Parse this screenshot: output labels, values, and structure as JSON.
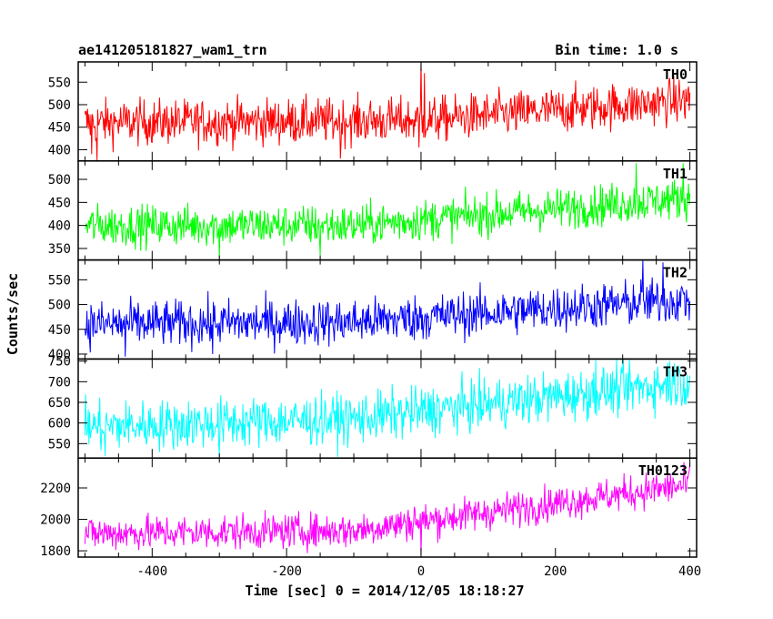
{
  "chart_data": {
    "type": "line",
    "title": "ae141205181827_wam1_trn",
    "bin_time": "Bin time: 1.0 s",
    "xlabel": "Time [sec] 0 = 2014/12/05 18:18:27",
    "ylabel": "Counts/sec",
    "xlim": [
      -510,
      410
    ],
    "x_ticks": [
      -400,
      -200,
      0,
      200,
      400
    ],
    "x_start": -500,
    "x_end": 400,
    "x_step": 1,
    "panels": [
      {
        "name": "TH0",
        "color": "#ff0000",
        "ylim": [
          375,
          595
        ],
        "y_ticks": [
          400,
          450,
          500,
          550
        ],
        "trend": [
          [
            -500,
            460
          ],
          [
            0,
            465
          ],
          [
            400,
            510
          ]
        ],
        "noise": 25,
        "spikes": [
          [
            -482,
            375
          ],
          [
            -120,
            380
          ],
          [
            -490,
            390
          ],
          [
            0,
            600
          ],
          [
            5,
            570
          ],
          [
            -3,
            405
          ]
        ]
      },
      {
        "name": "TH1",
        "color": "#00ff00",
        "ylim": [
          325,
          540
        ],
        "y_ticks": [
          350,
          400,
          450,
          500
        ],
        "trend": [
          [
            -500,
            400
          ],
          [
            -100,
            400
          ],
          [
            400,
            460
          ]
        ],
        "noise": 22,
        "spikes": [
          [
            -300,
            330
          ],
          [
            -150,
            335
          ],
          [
            320,
            535
          ],
          [
            390,
            535
          ]
        ]
      },
      {
        "name": "TH2",
        "color": "#0000ff",
        "ylim": [
          390,
          590
        ],
        "y_ticks": [
          400,
          450,
          500,
          550
        ],
        "trend": [
          [
            -500,
            460
          ],
          [
            -100,
            465
          ],
          [
            400,
            510
          ]
        ],
        "noise": 23,
        "spikes": [
          [
            -440,
            395
          ],
          [
            -310,
            400
          ],
          [
            330,
            590
          ],
          [
            360,
            585
          ]
        ]
      },
      {
        "name": "TH3",
        "color": "#00ffff",
        "ylim": [
          515,
          755
        ],
        "y_ticks": [
          550,
          600,
          650,
          700,
          750
        ],
        "trend": [
          [
            -500,
            590
          ],
          [
            -100,
            610
          ],
          [
            400,
            700
          ]
        ],
        "noise": 30,
        "spikes": [
          [
            -470,
            520
          ],
          [
            -300,
            520
          ],
          [
            260,
            755
          ],
          [
            370,
            750
          ]
        ]
      },
      {
        "name": "TH0123",
        "color": "#ff00ff",
        "ylim": [
          1760,
          2390
        ],
        "y_ticks": [
          1800,
          2000,
          2200
        ],
        "trend": [
          [
            -500,
            1910
          ],
          [
            -100,
            1930
          ],
          [
            400,
            2220
          ]
        ],
        "noise": 55,
        "spikes": [
          [
            -10,
            2080
          ],
          [
            0,
            1770
          ],
          [
            400,
            2360
          ]
        ]
      }
    ]
  }
}
